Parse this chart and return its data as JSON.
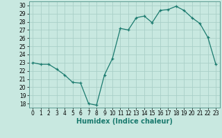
{
  "x": [
    0,
    1,
    2,
    3,
    4,
    5,
    6,
    7,
    8,
    9,
    10,
    11,
    12,
    13,
    14,
    15,
    16,
    17,
    18,
    19,
    20,
    21,
    22,
    23
  ],
  "y": [
    23.0,
    22.8,
    22.8,
    22.2,
    21.5,
    20.6,
    20.5,
    18.0,
    17.8,
    21.5,
    23.5,
    27.2,
    27.0,
    28.5,
    28.7,
    27.9,
    29.4,
    29.5,
    29.9,
    29.4,
    28.5,
    27.8,
    26.1,
    22.8
  ],
  "line_color": "#1a7a6e",
  "marker": "+",
  "marker_size": 3,
  "bg_color": "#c8e8e0",
  "grid_color": "#aacfc8",
  "xlabel": "Humidex (Indice chaleur)",
  "ylim": [
    17.5,
    30.5
  ],
  "xlim": [
    -0.5,
    23.5
  ],
  "yticks": [
    18,
    19,
    20,
    21,
    22,
    23,
    24,
    25,
    26,
    27,
    28,
    29,
    30
  ],
  "xticks": [
    0,
    1,
    2,
    3,
    4,
    5,
    6,
    7,
    8,
    9,
    10,
    11,
    12,
    13,
    14,
    15,
    16,
    17,
    18,
    19,
    20,
    21,
    22,
    23
  ],
  "tick_label_fontsize": 5.5,
  "xlabel_fontsize": 7.0,
  "line_width": 0.9
}
